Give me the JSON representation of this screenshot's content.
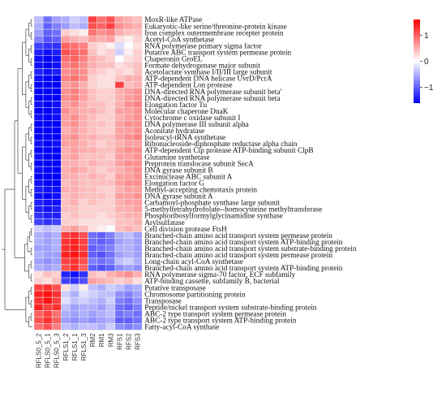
{
  "chart_data": {
    "type": "heatmap",
    "title": "",
    "xlabel": "",
    "ylabel": "",
    "columns": [
      "RFLS0_5_2",
      "RFLS0_5_1",
      "RFLS0_5_3",
      "RFLS1_2",
      "RFLS1_1",
      "RFLS1_3",
      "RM2",
      "RM1",
      "RM3",
      "RFS1",
      "RFS2",
      "RFS3"
    ],
    "rows": [
      "MoxR-like ATPase",
      "Eukaryotic-like serine/threonine-protein kinase",
      "Iron complex outermembrane recepter protein",
      "Acetyl-CoA synthetase",
      "RNA polymerase primary sigma factor",
      "Putative ABC transport system permease protein",
      "Chaperonin GroEL",
      "Formate dehydrogenase major subunit",
      "Acetolactate synthase I/II/III large subunit",
      "ATP-dependent DNA helicase UvrD/PcrA",
      "ATP-dependent Lon protease",
      "DNA-directed RNA polymerase subunit beta'",
      "DNA-directed RNA polymerase subunit beta",
      "Elongation factor Tu",
      "Molecular chaperone DnaK",
      "Cytochrome c oxidase subunit I",
      "DNA polymerase III subunit alpha",
      "Aconitate hydratase",
      "Isoleucyl-tRNA synthetase",
      "Ribonucleoside-diphosphate reductase alpha chain",
      "ATP-dependent Clp protease ATP-binding subunit ClpB",
      "Glutamine synthetase",
      "Preprotein translocase subunit SecA",
      "DNA gyrase subunit B",
      "Excinuclease ABC subunit A",
      "Elongation factor G",
      "Methyl-accepting chemotaxis protein",
      "DNA gyrase subunit A",
      "Carbamoyl-phosphate synthase large subunit",
      "5-methyltetrahydrofolate--homocysteine methyltransferase",
      "Phosphoribosylformylglycinamidine synthase",
      "Arylsulfatase",
      "Cell division protease FtsH",
      "Branched-chain amino acid transport system permease protein",
      "Branched-chain amino acid transport system ATP-binding protein",
      "Branched-chain amino acid transport system substrate-binding protein",
      "Branched-chain amino acid transport system permease protein",
      "Long-chain acyl-CoA synthetase",
      "Branched-chain amino acid transport system ATP-binding protein",
      "RNA polymerase sigma-70 factor, ECF subfamily",
      "ATP-binding cassette, subfamily B, bacterial",
      "Putative transposase",
      "Chromosome partitioning protein",
      "Transposase",
      "Peptide/nickel transport system substrate-binding protein",
      "ABC-2 type transport system permease protein",
      "ABC-2 type transport system ATP-binding protein",
      "Fatty-acyl-CoA synthase"
    ],
    "values": [
      [
        -0.4,
        -0.9,
        -0.6,
        -0.5,
        -0.3,
        -0.4,
        1.2,
        0.9,
        1.1,
        0.6,
        0.5,
        0.4
      ],
      [
        -0.5,
        -1.0,
        -0.8,
        -0.6,
        -0.4,
        -0.5,
        1.1,
        1.0,
        1.2,
        0.7,
        0.6,
        0.5
      ],
      [
        -0.6,
        -1.0,
        -0.9,
        0.3,
        0.2,
        0.1,
        0.9,
        0.7,
        0.8,
        0.5,
        0.4,
        0.4
      ],
      [
        -0.8,
        -1.1,
        -1.0,
        0.6,
        0.5,
        0.4,
        0.6,
        0.5,
        0.6,
        0.2,
        0.1,
        0.3
      ],
      [
        -1.2,
        -1.3,
        -1.3,
        1.0,
        0.9,
        0.8,
        0.3,
        0.2,
        0.1,
        -0.2,
        0.0,
        0.2
      ],
      [
        -1.4,
        -1.5,
        -1.4,
        1.1,
        1.0,
        0.9,
        0.4,
        0.2,
        0.3,
        -0.3,
        0.1,
        0.3
      ],
      [
        -1.5,
        -1.6,
        -1.5,
        0.9,
        1.0,
        0.8,
        0.5,
        0.4,
        0.3,
        0.0,
        0.2,
        0.3
      ],
      [
        -1.5,
        -1.6,
        -1.5,
        0.8,
        0.9,
        0.7,
        0.5,
        0.4,
        0.4,
        0.2,
        0.3,
        0.4
      ],
      [
        -1.4,
        -1.5,
        -1.4,
        0.7,
        0.8,
        0.7,
        0.4,
        0.3,
        0.2,
        0.3,
        0.2,
        0.4
      ],
      [
        -1.5,
        -1.6,
        -1.6,
        0.8,
        0.9,
        0.7,
        0.3,
        0.2,
        0.2,
        0.4,
        0.5,
        0.5
      ],
      [
        -1.6,
        -1.6,
        -1.6,
        0.6,
        0.7,
        0.5,
        0.3,
        0.2,
        0.2,
        1.2,
        0.4,
        0.5
      ],
      [
        -1.6,
        -1.7,
        -1.6,
        0.7,
        0.8,
        0.6,
        0.4,
        0.3,
        0.3,
        0.5,
        0.6,
        0.7
      ],
      [
        -1.6,
        -1.7,
        -1.6,
        0.7,
        0.8,
        0.6,
        0.4,
        0.3,
        0.3,
        0.5,
        0.6,
        0.7
      ],
      [
        -1.5,
        -1.6,
        -1.5,
        0.6,
        0.7,
        0.5,
        0.4,
        0.4,
        0.3,
        0.5,
        0.7,
        0.8
      ],
      [
        -1.6,
        -1.6,
        -1.5,
        0.7,
        0.6,
        0.5,
        0.5,
        0.4,
        0.3,
        0.6,
        0.6,
        0.7
      ],
      [
        -1.5,
        -1.6,
        -1.5,
        0.6,
        0.7,
        0.5,
        0.4,
        0.3,
        0.3,
        0.5,
        0.6,
        0.7
      ],
      [
        -1.6,
        -1.7,
        -1.6,
        0.6,
        0.7,
        0.5,
        0.4,
        0.4,
        0.3,
        0.6,
        0.7,
        0.7
      ],
      [
        -1.6,
        -1.6,
        -1.6,
        0.5,
        0.6,
        0.5,
        0.4,
        0.3,
        0.3,
        0.6,
        0.6,
        0.7
      ],
      [
        -1.6,
        -1.7,
        -1.6,
        0.6,
        0.7,
        0.5,
        0.5,
        0.4,
        0.4,
        0.6,
        0.7,
        0.8
      ],
      [
        -1.5,
        -1.6,
        -1.5,
        0.6,
        0.6,
        0.5,
        0.4,
        0.3,
        0.4,
        0.5,
        0.6,
        0.6
      ],
      [
        -1.6,
        -1.7,
        -1.6,
        0.5,
        0.6,
        0.5,
        0.5,
        0.4,
        0.4,
        0.6,
        0.7,
        0.7
      ],
      [
        -1.5,
        -1.6,
        -1.6,
        0.5,
        0.6,
        0.4,
        0.4,
        0.4,
        0.3,
        0.6,
        0.6,
        0.7
      ],
      [
        -1.6,
        -1.7,
        -1.6,
        0.5,
        0.5,
        0.4,
        0.5,
        0.4,
        0.4,
        0.6,
        0.7,
        0.7
      ],
      [
        -1.5,
        -1.6,
        -1.6,
        0.5,
        0.6,
        0.5,
        0.4,
        0.3,
        0.4,
        0.5,
        0.6,
        0.7
      ],
      [
        -1.6,
        -1.6,
        -1.6,
        0.5,
        0.5,
        0.4,
        0.5,
        0.4,
        0.3,
        0.6,
        0.6,
        0.7
      ],
      [
        -1.5,
        -1.6,
        -1.6,
        0.4,
        0.5,
        0.4,
        0.4,
        0.4,
        0.4,
        0.6,
        0.7,
        0.7
      ],
      [
        -1.4,
        -1.5,
        -1.5,
        0.5,
        0.5,
        0.4,
        0.4,
        0.3,
        0.3,
        0.5,
        0.6,
        0.6
      ],
      [
        -1.5,
        -1.6,
        -1.5,
        0.4,
        0.5,
        0.4,
        0.4,
        0.4,
        0.3,
        0.6,
        0.6,
        0.7
      ],
      [
        -1.4,
        -1.5,
        -1.5,
        0.4,
        0.5,
        0.3,
        0.4,
        0.3,
        0.3,
        0.5,
        0.6,
        0.6
      ],
      [
        -1.4,
        -1.5,
        -1.4,
        0.4,
        0.4,
        0.3,
        0.3,
        0.3,
        0.3,
        0.5,
        0.5,
        0.6
      ],
      [
        -1.3,
        -1.4,
        -1.4,
        0.3,
        0.4,
        0.3,
        0.3,
        0.2,
        0.3,
        0.4,
        0.5,
        0.5
      ],
      [
        -1.2,
        -1.3,
        -1.2,
        0.3,
        0.3,
        0.2,
        0.2,
        0.2,
        0.2,
        0.4,
        0.4,
        0.5
      ],
      [
        -0.3,
        -0.4,
        -0.3,
        0.5,
        0.6,
        0.4,
        0.2,
        0.1,
        0.0,
        0.4,
        0.5,
        0.4
      ],
      [
        -0.5,
        -0.6,
        -0.5,
        1.2,
        1.3,
        1.1,
        -0.9,
        -1.0,
        -0.8,
        -0.5,
        -0.4,
        -0.6
      ],
      [
        -0.5,
        -0.6,
        -0.5,
        1.3,
        1.4,
        1.2,
        -0.9,
        -1.0,
        -0.9,
        -0.6,
        -0.5,
        -0.6
      ],
      [
        -0.6,
        -0.6,
        -0.5,
        1.3,
        1.4,
        1.2,
        -1.0,
        -0.9,
        -0.8,
        -0.5,
        -0.5,
        -0.6
      ],
      [
        -0.5,
        -0.6,
        -0.6,
        1.4,
        1.5,
        1.3,
        -1.0,
        -1.1,
        -0.9,
        -0.6,
        -0.5,
        -0.6
      ],
      [
        -0.6,
        -0.7,
        -0.6,
        1.2,
        1.3,
        1.1,
        -0.8,
        -0.9,
        -0.8,
        -0.4,
        -0.3,
        -0.5
      ],
      [
        -0.5,
        -0.6,
        -0.5,
        1.1,
        1.3,
        1.0,
        -1.0,
        -1.1,
        -1.0,
        -0.7,
        -0.6,
        -0.7
      ],
      [
        0.2,
        0.4,
        0.3,
        -1.4,
        -1.5,
        -1.3,
        0.4,
        0.3,
        0.5,
        0.6,
        0.7,
        0.5
      ],
      [
        0.3,
        0.2,
        0.4,
        -1.2,
        -1.3,
        -1.1,
        0.6,
        0.5,
        0.4,
        0.3,
        0.4,
        0.2
      ],
      [
        1.2,
        1.3,
        1.1,
        0.2,
        -0.3,
        0.1,
        -0.4,
        -0.5,
        -0.3,
        -0.4,
        -0.6,
        -0.5
      ],
      [
        1.4,
        1.5,
        1.3,
        -0.3,
        -0.5,
        -0.2,
        -0.3,
        -0.4,
        -0.4,
        -0.7,
        -0.8,
        -0.6
      ],
      [
        1.3,
        1.5,
        1.2,
        -0.2,
        -0.4,
        -0.3,
        -0.4,
        -0.5,
        -0.3,
        -0.8,
        -0.9,
        -0.7
      ],
      [
        1.4,
        1.2,
        1.3,
        -0.4,
        -0.6,
        -0.5,
        -0.5,
        -0.6,
        -0.4,
        -0.9,
        -1.0,
        -0.8
      ],
      [
        1.0,
        1.2,
        0.9,
        -0.5,
        -0.6,
        -0.5,
        -0.6,
        -0.5,
        -0.4,
        -0.9,
        -0.8,
        -0.9
      ],
      [
        1.1,
        1.3,
        1.0,
        -0.6,
        -0.7,
        -0.6,
        -0.7,
        -0.6,
        -0.5,
        -1.0,
        -1.0,
        -0.9
      ],
      [
        0.9,
        1.1,
        0.8,
        -0.4,
        -0.5,
        -0.4,
        -0.4,
        -0.5,
        -0.3,
        -0.7,
        -0.8,
        -0.7
      ]
    ],
    "color_scale": {
      "min": -1.6,
      "max": 1.6,
      "low_color": "#0000ff",
      "mid_color": "#ffffff",
      "high_color": "#ff0000",
      "ticks": [
        1,
        0,
        -1
      ],
      "tick_labels": [
        "1",
        "0",
        "−1"
      ]
    },
    "grid": true,
    "legend_position": "top-right",
    "dendrograms": {
      "rows": true,
      "columns": false
    }
  }
}
